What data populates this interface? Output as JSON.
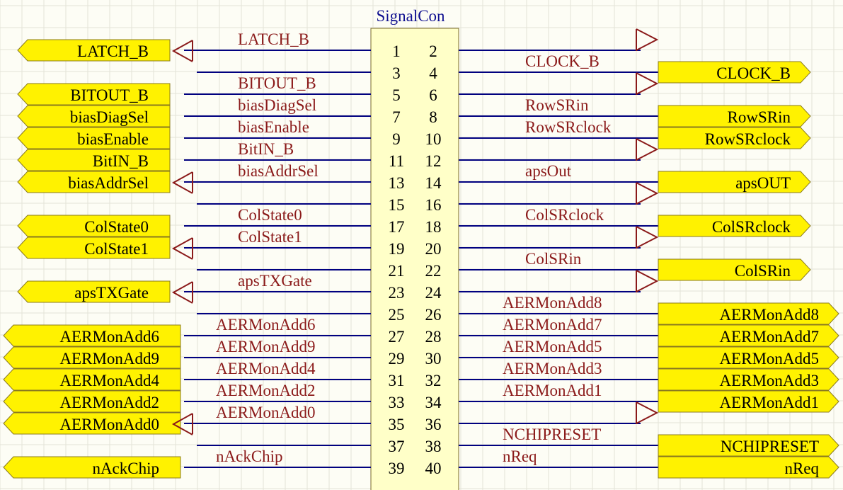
{
  "component": {
    "name": "SignalCon",
    "fill_color": "#ffffc8",
    "wire_color": "#000080",
    "net_color": "#8b1a1a",
    "port_fill": "#fff200"
  },
  "rows": [
    {
      "l": {
        "num": "1",
        "net": "LATCH_B",
        "port": "LATCH_B"
      },
      "r": {
        "num": "2",
        "net": "",
        "port": "",
        "pwr": true
      }
    },
    {
      "l": {
        "num": "3",
        "net": "",
        "port": "",
        "pwr": true
      },
      "r": {
        "num": "4",
        "net": "CLOCK_B",
        "port": "CLOCK_B"
      }
    },
    {
      "l": {
        "num": "5",
        "net": "BITOUT_B",
        "port": "BITOUT_B"
      },
      "r": {
        "num": "6",
        "net": "",
        "port": "",
        "pwr": true
      }
    },
    {
      "l": {
        "num": "7",
        "net": "biasDiagSel",
        "port": "biasDiagSel"
      },
      "r": {
        "num": "8",
        "net": "RowSRin",
        "port": "RowSRin"
      }
    },
    {
      "l": {
        "num": "9",
        "net": "biasEnable",
        "port": "biasEnable"
      },
      "r": {
        "num": "10",
        "net": "RowSRclock",
        "port": "RowSRclock"
      }
    },
    {
      "l": {
        "num": "11",
        "net": "BitIN_B",
        "port": "BitIN_B"
      },
      "r": {
        "num": "12",
        "net": "",
        "port": "",
        "pwr": true
      }
    },
    {
      "l": {
        "num": "13",
        "net": "biasAddrSel",
        "port": "biasAddrSel"
      },
      "r": {
        "num": "14",
        "net": "apsOut",
        "port": "apsOUT"
      }
    },
    {
      "l": {
        "num": "15",
        "net": "",
        "port": "",
        "pwr": true
      },
      "r": {
        "num": "16",
        "net": "",
        "port": "",
        "pwr": true
      }
    },
    {
      "l": {
        "num": "17",
        "net": "ColState0",
        "port": "ColState0"
      },
      "r": {
        "num": "18",
        "net": "ColSRclock",
        "port": "ColSRclock"
      }
    },
    {
      "l": {
        "num": "19",
        "net": "ColState1",
        "port": "ColState1"
      },
      "r": {
        "num": "20",
        "net": "",
        "port": "",
        "pwr": true
      }
    },
    {
      "l": {
        "num": "21",
        "net": "",
        "port": "",
        "pwr": true
      },
      "r": {
        "num": "22",
        "net": "ColSRin",
        "port": "ColSRin"
      }
    },
    {
      "l": {
        "num": "23",
        "net": "apsTXGate",
        "port": "apsTXGate"
      },
      "r": {
        "num": "24",
        "net": "",
        "port": "",
        "pwr": true
      }
    },
    {
      "l": {
        "num": "25",
        "net": "",
        "port": "",
        "pwr": true
      },
      "r": {
        "num": "26",
        "net": "AERMonAdd8",
        "port": "AERMonAdd8"
      }
    },
    {
      "l": {
        "num": "27",
        "net": "AERMonAdd6",
        "port": "AERMonAdd6"
      },
      "r": {
        "num": "28",
        "net": "AERMonAdd7",
        "port": "AERMonAdd7"
      }
    },
    {
      "l": {
        "num": "29",
        "net": "AERMonAdd9",
        "port": "AERMonAdd9"
      },
      "r": {
        "num": "30",
        "net": "AERMonAdd5",
        "port": "AERMonAdd5"
      }
    },
    {
      "l": {
        "num": "31",
        "net": "AERMonAdd4",
        "port": "AERMonAdd4"
      },
      "r": {
        "num": "32",
        "net": "AERMonAdd3",
        "port": "AERMonAdd3"
      }
    },
    {
      "l": {
        "num": "33",
        "net": "AERMonAdd2",
        "port": "AERMonAdd2"
      },
      "r": {
        "num": "34",
        "net": "AERMonAdd1",
        "port": "AERMonAdd1"
      }
    },
    {
      "l": {
        "num": "35",
        "net": "AERMonAdd0",
        "port": "AERMonAdd0"
      },
      "r": {
        "num": "36",
        "net": "",
        "port": "",
        "pwr": true
      }
    },
    {
      "l": {
        "num": "37",
        "net": "",
        "port": "",
        "pwr": true
      },
      "r": {
        "num": "38",
        "net": "NCHIPRESET",
        "port": "NCHIPRESET"
      }
    },
    {
      "l": {
        "num": "39",
        "net": "nAckChip",
        "port": "nAckChip"
      },
      "r": {
        "num": "40",
        "net": "nReq",
        "port": "nReq"
      }
    }
  ]
}
